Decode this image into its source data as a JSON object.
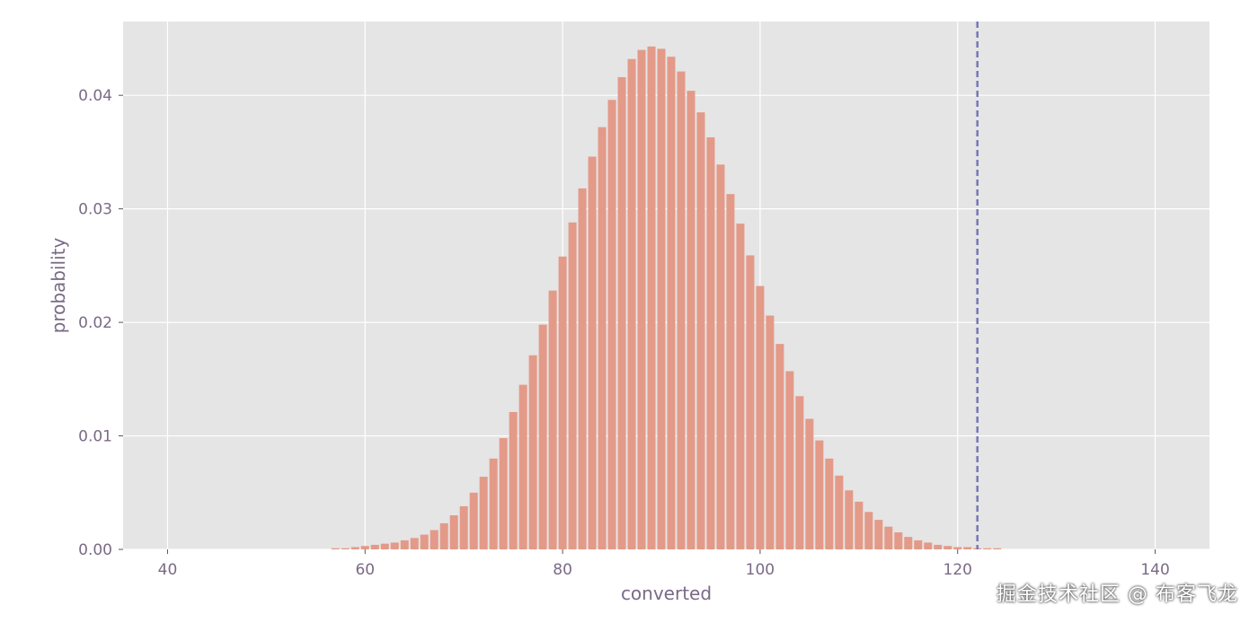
{
  "chart_data": {
    "type": "bar",
    "xlabel": "converted",
    "ylabel": "probability",
    "xlim": [
      35.5,
      145.5
    ],
    "ylim": [
      0,
      0.0465
    ],
    "xticks": [
      40,
      60,
      80,
      100,
      120,
      140
    ],
    "yticks": [
      0.0,
      0.01,
      0.02,
      0.03,
      0.04
    ],
    "ytick_labels": [
      "0.00",
      "0.01",
      "0.02",
      "0.03",
      "0.04"
    ],
    "grid": true,
    "bar_color": "#e49a88",
    "background_color": "#e5e5e5",
    "vline": {
      "x": 122,
      "color": "#7a7ab8",
      "style": "dashed"
    },
    "x": [
      57,
      58,
      59,
      60,
      61,
      62,
      63,
      64,
      65,
      66,
      67,
      68,
      69,
      70,
      71,
      72,
      73,
      74,
      75,
      76,
      77,
      78,
      79,
      80,
      81,
      82,
      83,
      84,
      85,
      86,
      87,
      88,
      89,
      90,
      91,
      92,
      93,
      94,
      95,
      96,
      97,
      98,
      99,
      100,
      101,
      102,
      103,
      104,
      105,
      106,
      107,
      108,
      109,
      110,
      111,
      112,
      113,
      114,
      115,
      116,
      117,
      118,
      119,
      120,
      121,
      122,
      123,
      124
    ],
    "values": [
      0.0001,
      0.0001,
      0.0002,
      0.0003,
      0.0004,
      0.0005,
      0.0006,
      0.0008,
      0.001,
      0.0013,
      0.0017,
      0.0023,
      0.003,
      0.0038,
      0.005,
      0.0064,
      0.008,
      0.0098,
      0.0121,
      0.0145,
      0.0171,
      0.0198,
      0.0228,
      0.0258,
      0.0288,
      0.0318,
      0.0346,
      0.0372,
      0.0396,
      0.0416,
      0.0432,
      0.044,
      0.0443,
      0.0441,
      0.0434,
      0.0421,
      0.0404,
      0.0385,
      0.0363,
      0.0339,
      0.0313,
      0.0287,
      0.0259,
      0.0232,
      0.0206,
      0.0181,
      0.0157,
      0.0135,
      0.0115,
      0.0096,
      0.008,
      0.0065,
      0.0052,
      0.0042,
      0.0033,
      0.0026,
      0.002,
      0.0015,
      0.0011,
      0.0008,
      0.0006,
      0.0004,
      0.0003,
      0.0002,
      0.0002,
      0.0001,
      0.0001,
      0.0001
    ]
  },
  "watermark": "掘金技术社区 @ 布客飞龙"
}
